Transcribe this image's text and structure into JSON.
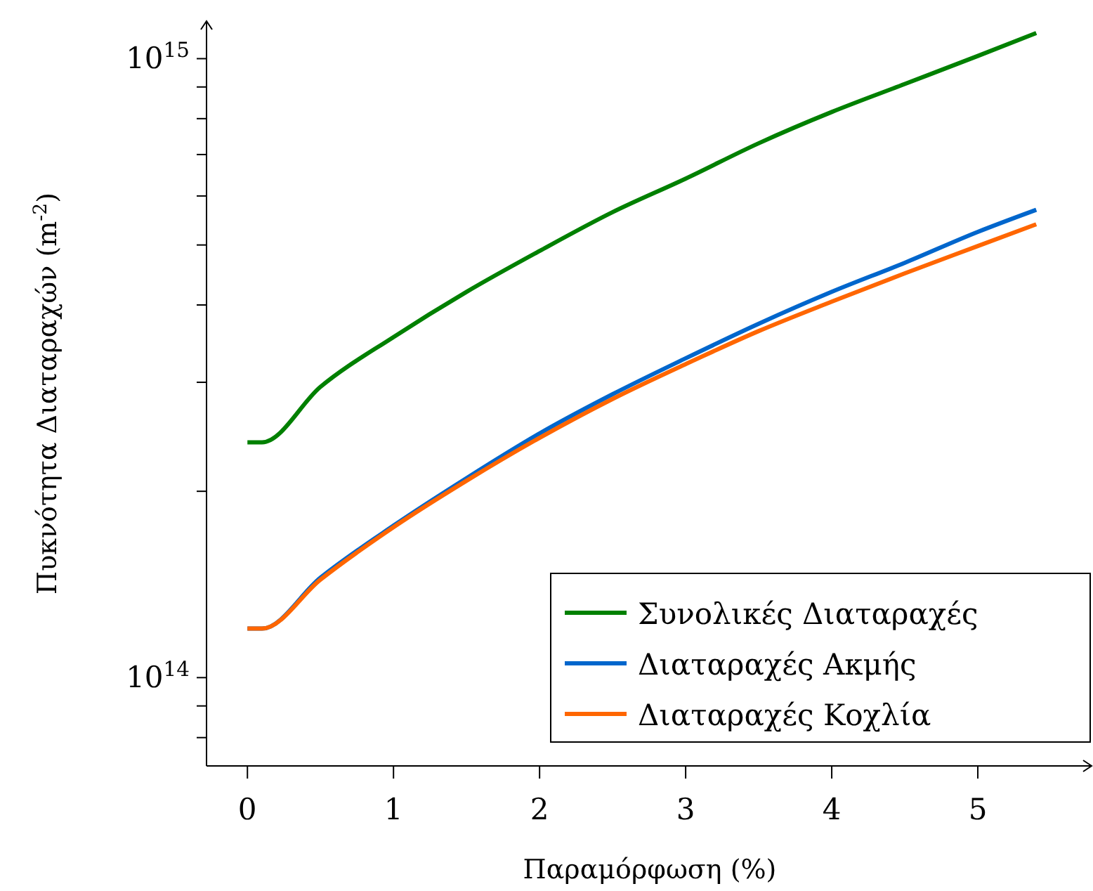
{
  "chart_data": {
    "type": "line",
    "xlabel": "Παραμόρφωση (%)",
    "ylabel": "Πυκνότητα Διαταραχών (m$^{-2}$)",
    "x": [
      0,
      0.1,
      0.5,
      1,
      1.5,
      2,
      2.5,
      3,
      3.5,
      4,
      4.5,
      5,
      5.4
    ],
    "series": [
      {
        "name": "Συνολικές Διαταραχές",
        "color": "#008000",
        "values": [
          240000000000000.0,
          240000000000000.0,
          295000000000000.0,
          355000000000000.0,
          420000000000000.0,
          489000000000000.0,
          565000000000000.0,
          640000000000000.0,
          730000000000000.0,
          820000000000000.0,
          910000000000000.0,
          1010000000000000.0,
          1100000000000000.0
        ]
      },
      {
        "name": "Διαταραχές Ακμής",
        "color": "#0066cc",
        "values": [
          120000000000000.0,
          120000000000000.0,
          145000000000000.0,
          176000000000000.0,
          210000000000000.0,
          248000000000000.0,
          287000000000000.0,
          328000000000000.0,
          373000000000000.0,
          420000000000000.0,
          468000000000000.0,
          525000000000000.0,
          570000000000000.0
        ]
      },
      {
        "name": "Διαταραχές Κοχλία",
        "color": "#ff6600",
        "values": [
          120000000000000.0,
          120000000000000.0,
          144000000000000.0,
          175000000000000.0,
          208000000000000.0,
          244000000000000.0,
          282000000000000.0,
          321000000000000.0,
          363000000000000.0,
          405000000000000.0,
          450000000000000.0,
          498000000000000.0,
          540000000000000.0
        ]
      }
    ],
    "xlim": [
      -0.28,
      5.75
    ],
    "xticks": [
      0,
      1,
      2,
      3,
      4,
      5
    ],
    "ylim": [
      72000000000000.0,
      1150000000000000.0
    ],
    "log": true,
    "yticks": [
      {
        "value": 80000000000000.0,
        "label": null
      },
      {
        "value": 90000000000000.0,
        "label": null
      },
      {
        "value": 100000000000000.0,
        "label": "10$^{14}$"
      },
      {
        "value": 200000000000000.0,
        "label": null
      },
      {
        "value": 300000000000000.0,
        "label": null
      },
      {
        "value": 400000000000000.0,
        "label": null
      },
      {
        "value": 500000000000000.0,
        "label": null
      },
      {
        "value": 600000000000000.0,
        "label": null
      },
      {
        "value": 700000000000000.0,
        "label": null
      },
      {
        "value": 800000000000000.0,
        "label": null
      },
      {
        "value": 900000000000000.0,
        "label": null
      },
      {
        "value": 1000000000000000.0,
        "label": "10$^{15}$"
      }
    ],
    "legend": "bottom right",
    "line_style": "solid",
    "marker": "none"
  }
}
